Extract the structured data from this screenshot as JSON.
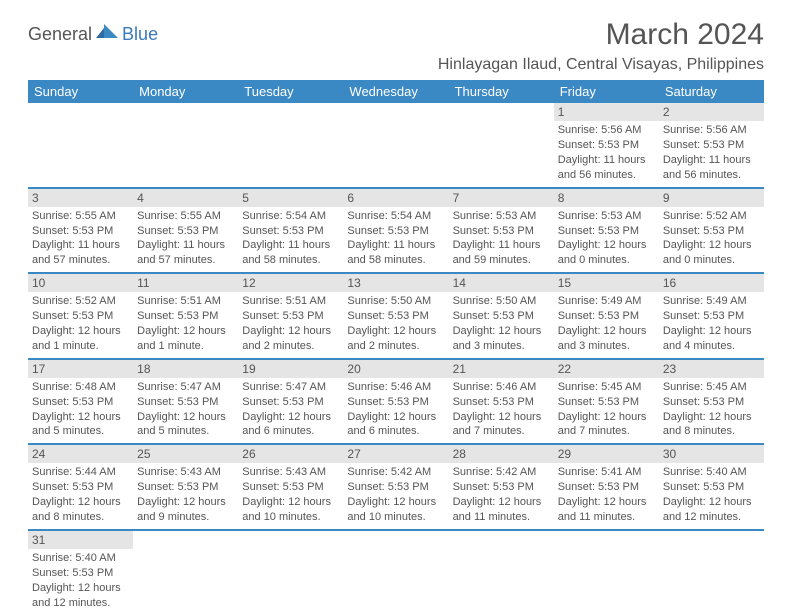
{
  "brand": {
    "part1": "General",
    "part2": "Blue"
  },
  "title": "March 2024",
  "location": "Hinlayagan Ilaud, Central Visayas, Philippines",
  "colors": {
    "header_bg": "#3a88c4",
    "header_fg": "#ffffff",
    "daynum_bg": "#e5e5e5",
    "border": "#3a88c4",
    "text": "#555555",
    "page_bg": "#ffffff",
    "brand_blue": "#3a7ab8"
  },
  "typography": {
    "title_fontsize": 30,
    "location_fontsize": 16,
    "weekday_fontsize": 13,
    "cell_fontsize": 11
  },
  "weekdays": [
    "Sunday",
    "Monday",
    "Tuesday",
    "Wednesday",
    "Thursday",
    "Friday",
    "Saturday"
  ],
  "weeks": [
    [
      null,
      null,
      null,
      null,
      null,
      {
        "n": "1",
        "sr": "5:56 AM",
        "ss": "5:53 PM",
        "dl": "11 hours and 56 minutes."
      },
      {
        "n": "2",
        "sr": "5:56 AM",
        "ss": "5:53 PM",
        "dl": "11 hours and 56 minutes."
      }
    ],
    [
      {
        "n": "3",
        "sr": "5:55 AM",
        "ss": "5:53 PM",
        "dl": "11 hours and 57 minutes."
      },
      {
        "n": "4",
        "sr": "5:55 AM",
        "ss": "5:53 PM",
        "dl": "11 hours and 57 minutes."
      },
      {
        "n": "5",
        "sr": "5:54 AM",
        "ss": "5:53 PM",
        "dl": "11 hours and 58 minutes."
      },
      {
        "n": "6",
        "sr": "5:54 AM",
        "ss": "5:53 PM",
        "dl": "11 hours and 58 minutes."
      },
      {
        "n": "7",
        "sr": "5:53 AM",
        "ss": "5:53 PM",
        "dl": "11 hours and 59 minutes."
      },
      {
        "n": "8",
        "sr": "5:53 AM",
        "ss": "5:53 PM",
        "dl": "12 hours and 0 minutes."
      },
      {
        "n": "9",
        "sr": "5:52 AM",
        "ss": "5:53 PM",
        "dl": "12 hours and 0 minutes."
      }
    ],
    [
      {
        "n": "10",
        "sr": "5:52 AM",
        "ss": "5:53 PM",
        "dl": "12 hours and 1 minute."
      },
      {
        "n": "11",
        "sr": "5:51 AM",
        "ss": "5:53 PM",
        "dl": "12 hours and 1 minute."
      },
      {
        "n": "12",
        "sr": "5:51 AM",
        "ss": "5:53 PM",
        "dl": "12 hours and 2 minutes."
      },
      {
        "n": "13",
        "sr": "5:50 AM",
        "ss": "5:53 PM",
        "dl": "12 hours and 2 minutes."
      },
      {
        "n": "14",
        "sr": "5:50 AM",
        "ss": "5:53 PM",
        "dl": "12 hours and 3 minutes."
      },
      {
        "n": "15",
        "sr": "5:49 AM",
        "ss": "5:53 PM",
        "dl": "12 hours and 3 minutes."
      },
      {
        "n": "16",
        "sr": "5:49 AM",
        "ss": "5:53 PM",
        "dl": "12 hours and 4 minutes."
      }
    ],
    [
      {
        "n": "17",
        "sr": "5:48 AM",
        "ss": "5:53 PM",
        "dl": "12 hours and 5 minutes."
      },
      {
        "n": "18",
        "sr": "5:47 AM",
        "ss": "5:53 PM",
        "dl": "12 hours and 5 minutes."
      },
      {
        "n": "19",
        "sr": "5:47 AM",
        "ss": "5:53 PM",
        "dl": "12 hours and 6 minutes."
      },
      {
        "n": "20",
        "sr": "5:46 AM",
        "ss": "5:53 PM",
        "dl": "12 hours and 6 minutes."
      },
      {
        "n": "21",
        "sr": "5:46 AM",
        "ss": "5:53 PM",
        "dl": "12 hours and 7 minutes."
      },
      {
        "n": "22",
        "sr": "5:45 AM",
        "ss": "5:53 PM",
        "dl": "12 hours and 7 minutes."
      },
      {
        "n": "23",
        "sr": "5:45 AM",
        "ss": "5:53 PM",
        "dl": "12 hours and 8 minutes."
      }
    ],
    [
      {
        "n": "24",
        "sr": "5:44 AM",
        "ss": "5:53 PM",
        "dl": "12 hours and 8 minutes."
      },
      {
        "n": "25",
        "sr": "5:43 AM",
        "ss": "5:53 PM",
        "dl": "12 hours and 9 minutes."
      },
      {
        "n": "26",
        "sr": "5:43 AM",
        "ss": "5:53 PM",
        "dl": "12 hours and 10 minutes."
      },
      {
        "n": "27",
        "sr": "5:42 AM",
        "ss": "5:53 PM",
        "dl": "12 hours and 10 minutes."
      },
      {
        "n": "28",
        "sr": "5:42 AM",
        "ss": "5:53 PM",
        "dl": "12 hours and 11 minutes."
      },
      {
        "n": "29",
        "sr": "5:41 AM",
        "ss": "5:53 PM",
        "dl": "12 hours and 11 minutes."
      },
      {
        "n": "30",
        "sr": "5:40 AM",
        "ss": "5:53 PM",
        "dl": "12 hours and 12 minutes."
      }
    ],
    [
      {
        "n": "31",
        "sr": "5:40 AM",
        "ss": "5:53 PM",
        "dl": "12 hours and 12 minutes."
      },
      null,
      null,
      null,
      null,
      null,
      null
    ]
  ],
  "labels": {
    "sunrise": "Sunrise:",
    "sunset": "Sunset:",
    "daylight": "Daylight:"
  }
}
